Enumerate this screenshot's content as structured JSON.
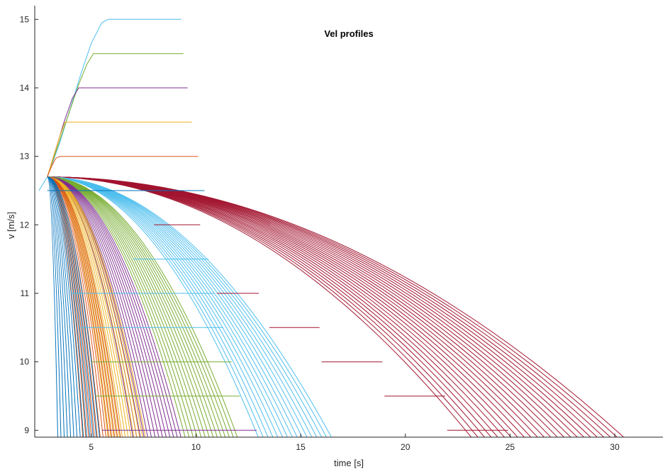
{
  "chart_data": {
    "type": "line",
    "title": "Vel profiles",
    "xlabel": "time [s]",
    "ylabel": "v [m/s]",
    "xlim": [
      2.3,
      32.3
    ],
    "ylim": [
      8.9,
      15.2
    ],
    "xticks": [
      5,
      10,
      15,
      20,
      25,
      30
    ],
    "yticks": [
      9,
      10,
      11,
      12,
      13,
      14,
      15
    ],
    "grid": false,
    "colors": {
      "crimson": "#A2142F",
      "sky": "#4DBEEE",
      "green": "#77AC30",
      "purple": "#7E2F8E",
      "yellow": "#EDB120",
      "orange": "#D95319",
      "blue": "#0072BD"
    },
    "accel_series": [
      {
        "color": "sky",
        "x": [
          2.5,
          2.9,
          3.5,
          4.0,
          4.5,
          5.0,
          5.5,
          5.8,
          9.3
        ],
        "y": [
          12.5,
          12.7,
          13.2,
          13.7,
          14.2,
          14.65,
          14.95,
          15.0,
          15.0
        ]
      },
      {
        "color": "green",
        "x": [
          2.9,
          3.4,
          3.9,
          4.4,
          4.8,
          5.1,
          9.4
        ],
        "y": [
          12.7,
          13.15,
          13.6,
          14.05,
          14.35,
          14.5,
          14.5
        ]
      },
      {
        "color": "purple",
        "x": [
          2.9,
          3.3,
          3.7,
          4.1,
          4.4,
          9.6
        ],
        "y": [
          12.7,
          13.1,
          13.5,
          13.85,
          14.0,
          14.0
        ]
      },
      {
        "color": "yellow",
        "x": [
          2.9,
          3.2,
          3.5,
          3.75,
          9.8
        ],
        "y": [
          12.7,
          13.0,
          13.3,
          13.5,
          13.5
        ]
      },
      {
        "color": "orange",
        "x": [
          2.9,
          3.1,
          3.3,
          3.5,
          10.1
        ],
        "y": [
          12.7,
          12.85,
          12.97,
          13.0,
          13.0
        ]
      },
      {
        "color": "blue",
        "x": [
          2.9,
          10.4
        ],
        "y": [
          12.5,
          12.5
        ]
      }
    ],
    "decel_groups": [
      {
        "color": "crimson",
        "start_x": 2.9,
        "start_y": 12.7,
        "end_x_range": [
          23.2,
          30.5
        ],
        "count": 24
      },
      {
        "color": "sky",
        "start_x": 2.9,
        "start_y": 12.7,
        "end_x_range": [
          13.0,
          16.5
        ],
        "count": 16
      },
      {
        "color": "green",
        "start_x": 2.9,
        "start_y": 12.7,
        "end_x_range": [
          9.5,
          12.0
        ],
        "count": 14
      },
      {
        "color": "purple",
        "start_x": 2.9,
        "start_y": 12.7,
        "end_x_range": [
          7.0,
          9.3
        ],
        "count": 14
      },
      {
        "color": "yellow",
        "start_x": 2.9,
        "start_y": 12.7,
        "end_x_range": [
          5.8,
          7.6
        ],
        "count": 14
      },
      {
        "color": "orange",
        "start_x": 2.9,
        "start_y": 12.7,
        "end_x_range": [
          4.6,
          6.4
        ],
        "count": 14
      },
      {
        "color": "blue",
        "start_x": 2.9,
        "start_y": 12.7,
        "end_x_range": [
          3.4,
          5.4
        ],
        "count": 14
      }
    ],
    "plateau_segments": [
      {
        "color": "blue",
        "y": 12.5,
        "x": [
          3.0,
          10.4
        ]
      },
      {
        "color": "crimson",
        "y": 12.0,
        "x": [
          8.0,
          10.2
        ]
      },
      {
        "color": "sky",
        "y": 11.5,
        "x": [
          7.0,
          10.6
        ]
      },
      {
        "color": "sky",
        "y": 11.0,
        "x": [
          4.0,
          10.9
        ]
      },
      {
        "color": "crimson",
        "y": 11.0,
        "x": [
          11.0,
          13.0
        ]
      },
      {
        "color": "sky",
        "y": 10.5,
        "x": [
          4.5,
          11.3
        ]
      },
      {
        "color": "crimson",
        "y": 10.5,
        "x": [
          13.5,
          15.9
        ]
      },
      {
        "color": "green",
        "y": 10.0,
        "x": [
          5.0,
          11.7
        ]
      },
      {
        "color": "crimson",
        "y": 10.0,
        "x": [
          16.0,
          18.9
        ]
      },
      {
        "color": "green",
        "y": 9.5,
        "x": [
          5.2,
          12.1
        ]
      },
      {
        "color": "crimson",
        "y": 9.5,
        "x": [
          19.0,
          21.9
        ]
      },
      {
        "color": "purple",
        "y": 9.0,
        "x": [
          5.5,
          12.9
        ]
      },
      {
        "color": "crimson",
        "y": 9.0,
        "x": [
          22.0,
          24.9
        ]
      }
    ]
  }
}
